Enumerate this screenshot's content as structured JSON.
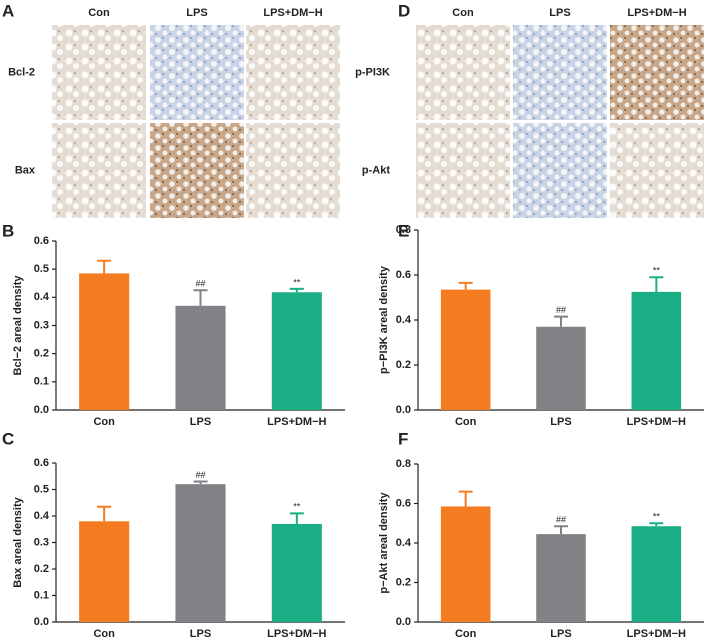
{
  "image_panels": [
    {
      "panel": "A",
      "columns": [
        "Con",
        "LPS",
        "LPS+DM−H"
      ],
      "rows": [
        "Bcl-2",
        "Bax"
      ]
    },
    {
      "panel": "D",
      "columns": [
        "Con",
        "LPS",
        "LPS+DM−H"
      ],
      "rows": [
        "p-PI3K",
        "p-Akt"
      ]
    }
  ],
  "chart_data": [
    {
      "type": "bar",
      "panel": "B",
      "ylabel": "Bcl−2 areal density",
      "categories": [
        "Con",
        "LPS",
        "LPS+DM−H"
      ],
      "values": [
        0.485,
        0.37,
        0.418
      ],
      "errors": [
        0.045,
        0.055,
        0.012
      ],
      "annotations": [
        null,
        "##",
        "**"
      ],
      "colors": [
        "#f47b20",
        "#808285",
        "#1aae84"
      ],
      "ylim": [
        0,
        0.6
      ],
      "yticks": [
        {
          "value": 0,
          "label": "0.0"
        },
        0.1,
        0.2,
        0.3,
        0.4,
        0.5,
        0.6
      ]
    },
    {
      "type": "bar",
      "panel": "C",
      "ylabel": "Bax areal density",
      "categories": [
        "Con",
        "LPS",
        "LPS+DM−H"
      ],
      "values": [
        0.38,
        0.52,
        0.37
      ],
      "errors": [
        0.055,
        0.01,
        0.04
      ],
      "annotations": [
        null,
        "##",
        "**"
      ],
      "colors": [
        "#f47b20",
        "#808285",
        "#1aae84"
      ],
      "ylim": [
        0,
        0.6
      ],
      "yticks": [
        {
          "value": 0,
          "label": "0.0"
        },
        0.1,
        0.2,
        0.3,
        0.4,
        0.5,
        0.6
      ]
    },
    {
      "type": "bar",
      "panel": "E",
      "ylabel": "p−PI3K areal density",
      "categories": [
        "Con",
        "LPS",
        "LPS+DM−H"
      ],
      "values": [
        0.535,
        0.37,
        0.525
      ],
      "errors": [
        0.03,
        0.045,
        0.065
      ],
      "annotations": [
        null,
        "##",
        "**"
      ],
      "colors": [
        "#f47b20",
        "#808285",
        "#1aae84"
      ],
      "ylim": [
        0,
        0.8
      ],
      "yticks": [
        {
          "value": 0,
          "label": "0.0"
        },
        0.2,
        0.4,
        0.6,
        0.8
      ]
    },
    {
      "type": "bar",
      "panel": "F",
      "ylabel": "p−Akt areal density",
      "categories": [
        "Con",
        "LPS",
        "LPS+DM−H"
      ],
      "values": [
        0.585,
        0.445,
        0.485
      ],
      "errors": [
        0.075,
        0.04,
        0.015
      ],
      "annotations": [
        null,
        "##",
        "**"
      ],
      "colors": [
        "#f47b20",
        "#808285",
        "#1aae84"
      ],
      "ylim": [
        0,
        0.8
      ],
      "yticks": [
        {
          "value": 0,
          "label": "0.0"
        },
        0.2,
        0.4,
        0.6,
        0.8
      ]
    }
  ]
}
